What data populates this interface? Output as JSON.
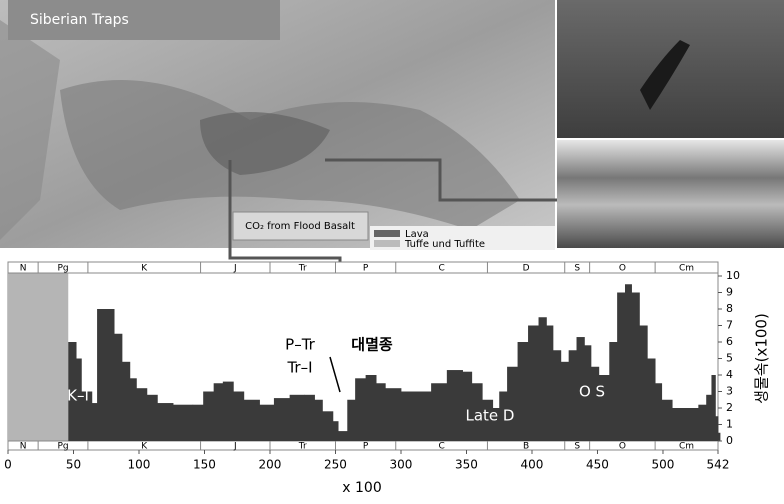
{
  "map": {
    "title": "Siberian Traps",
    "callout": "CO₂ from Flood Basalt",
    "legend": [
      "Lava",
      "Tuffe und Tuffite"
    ]
  },
  "chart_data": {
    "type": "area",
    "x": [
      46,
      52,
      56,
      64,
      68,
      75,
      81,
      87,
      93,
      98,
      106,
      114,
      126,
      141,
      149,
      157,
      164,
      172,
      180,
      192,
      203,
      215,
      226,
      234,
      240,
      248,
      252,
      259,
      265,
      273,
      281,
      288,
      300,
      312,
      323,
      335,
      347,
      354,
      362,
      370,
      375,
      381,
      389,
      397,
      405,
      411,
      416,
      422,
      428,
      434,
      440,
      445,
      451,
      459,
      465,
      471,
      476,
      482,
      488,
      494,
      499,
      507,
      517,
      527,
      533,
      537,
      540,
      542
    ],
    "values": [
      6.0,
      5.0,
      3.0,
      2.3,
      8.0,
      8.0,
      6.5,
      4.8,
      3.8,
      3.2,
      2.8,
      2.3,
      2.2,
      2.2,
      3.0,
      3.5,
      3.6,
      3.0,
      2.5,
      2.2,
      2.6,
      2.8,
      2.8,
      2.5,
      1.8,
      1.2,
      0.6,
      2.5,
      3.8,
      4.0,
      3.5,
      3.2,
      3.0,
      3.0,
      3.5,
      4.3,
      4.2,
      3.5,
      2.5,
      2.0,
      3.0,
      4.5,
      6.0,
      7.0,
      7.5,
      7.0,
      5.5,
      4.8,
      5.5,
      6.3,
      5.8,
      4.5,
      4.0,
      6.0,
      9.0,
      9.5,
      9.0,
      7.0,
      5.0,
      3.5,
      2.5,
      2.0,
      2.0,
      2.2,
      2.8,
      4.0,
      1.5,
      0.5
    ],
    "color": "#3a3a3a",
    "xlim": [
      0,
      542
    ],
    "xticks": [
      0,
      50,
      100,
      150,
      200,
      250,
      300,
      350,
      400,
      450,
      500,
      542
    ],
    "xlabel": "x 100",
    "ylim": [
      0,
      10
    ],
    "yticks": [
      0,
      1,
      2,
      3,
      4,
      5,
      6,
      7,
      8,
      9,
      10
    ],
    "ylabel": "생물속(x100)",
    "periods_top": [
      "N",
      "Pg",
      "K",
      "J",
      "Tr",
      "P",
      "C",
      "D",
      "S",
      "O",
      "Cm"
    ],
    "periods_bottom": [
      "N",
      "Pg",
      "K",
      "J",
      "Tr",
      "P",
      "C",
      "B",
      "S",
      "O",
      "Cm"
    ],
    "period_bounds": [
      0,
      23,
      61,
      147,
      200,
      250,
      296,
      366,
      425,
      444,
      494,
      542
    ],
    "annotations": [
      "K–I",
      "P–Tr",
      "Tr–I",
      "대멸종",
      "Late D",
      "O S"
    ]
  }
}
